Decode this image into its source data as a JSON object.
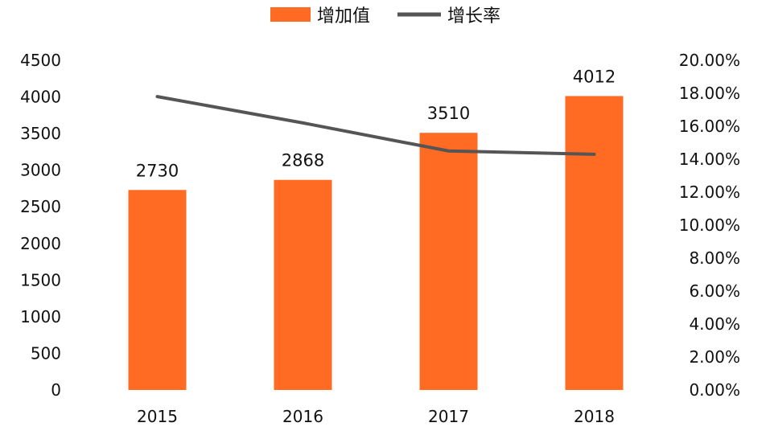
{
  "chart_data": {
    "type": "bar",
    "categories": [
      "2015",
      "2016",
      "2017",
      "2018"
    ],
    "series": [
      {
        "name": "增加值",
        "type": "bar",
        "axis": "left",
        "values": [
          2730,
          2868,
          3510,
          4012
        ],
        "color": "#FF6B22"
      },
      {
        "name": "增长率",
        "type": "line",
        "axis": "right",
        "values": [
          0.178,
          0.162,
          0.145,
          0.143
        ],
        "color": "#555555"
      }
    ],
    "data_labels": [
      "2730",
      "2868",
      "3510",
      "4012"
    ],
    "title": "",
    "xlabel": "",
    "ylabel": "",
    "ylim": [
      0,
      4500
    ],
    "y_ticks": [
      "0",
      "500",
      "1000",
      "1500",
      "2000",
      "2500",
      "3000",
      "3500",
      "4000",
      "4500"
    ],
    "y2lim": [
      0,
      0.2
    ],
    "y2_ticks": [
      "0.00%",
      "2.00%",
      "4.00%",
      "6.00%",
      "8.00%",
      "10.00%",
      "12.00%",
      "14.00%",
      "16.00%",
      "18.00%",
      "20.00%"
    ],
    "grid": false,
    "legend_position": "top-center"
  }
}
